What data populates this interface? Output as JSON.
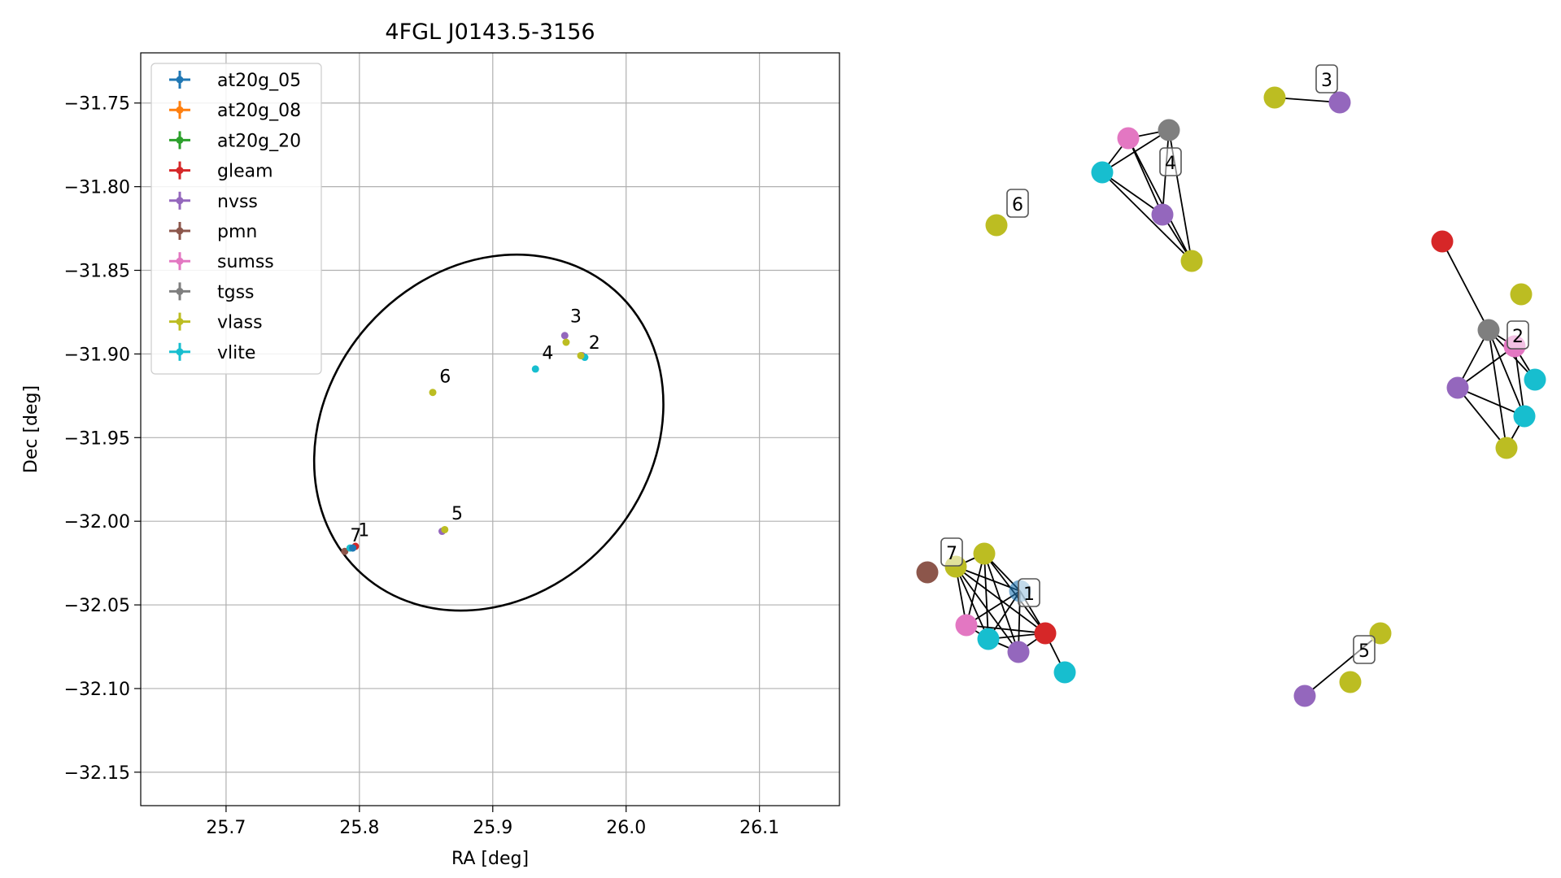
{
  "figure": {
    "title": "4FGL J0143.5-3156"
  },
  "colors": {
    "at20g_05": "#1f77b4",
    "at20g_08": "#ff7f0e",
    "at20g_20": "#2ca02c",
    "gleam": "#d62728",
    "nvss": "#9467bd",
    "pmn": "#8c564b",
    "sumss": "#e377c2",
    "tgss": "#7f7f7f",
    "vlass": "#bcbd22",
    "vlite": "#17becf",
    "grid": "#b0b0b0",
    "ellipse": "#000000"
  },
  "chart_data": [
    {
      "type": "scatter",
      "title": "4FGL J0143.5-3156",
      "xlabel": "RA [deg]",
      "ylabel": "Dec [deg]",
      "xlim": [
        25.636,
        26.16
      ],
      "ylim": [
        -32.17,
        -31.72
      ],
      "xticks": [
        25.7,
        25.8,
        25.9,
        26.0,
        26.1
      ],
      "xtick_labels": [
        "25.7",
        "25.8",
        "25.9",
        "26.0",
        "26.1"
      ],
      "yticks": [
        -31.75,
        -31.8,
        -31.85,
        -31.9,
        -31.95,
        -32.0,
        -32.05,
        -32.1,
        -32.15
      ],
      "ytick_labels": [
        "−31.75",
        "−31.80",
        "−31.85",
        "−31.90",
        "−31.95",
        "−32.00",
        "−32.05",
        "−32.10",
        "−32.15"
      ],
      "grid": true,
      "legend_position": "top-left",
      "legend": [
        "at20g_05",
        "at20g_08",
        "at20g_20",
        "gleam",
        "nvss",
        "pmn",
        "sumss",
        "tgss",
        "vlass",
        "vlite"
      ],
      "ellipse": {
        "center_ra": 25.897,
        "center_dec": -31.947,
        "semi_major_deg": 0.1425,
        "semi_minor_deg": 0.0965,
        "position_angle_deg": -48.5
      },
      "points": [
        {
          "catalog": "gleam",
          "ra": 25.797,
          "dec": -32.015
        },
        {
          "catalog": "pmn",
          "ra": 25.789,
          "dec": -32.018
        },
        {
          "catalog": "vlite",
          "ra": 25.793,
          "dec": -32.016
        },
        {
          "catalog": "at20g_05",
          "ra": 25.795,
          "dec": -32.016
        },
        {
          "catalog": "nvss",
          "ra": 25.862,
          "dec": -32.006
        },
        {
          "catalog": "vlass",
          "ra": 25.864,
          "dec": -32.005
        },
        {
          "catalog": "vlass",
          "ra": 25.855,
          "dec": -31.923
        },
        {
          "catalog": "nvss",
          "ra": 25.954,
          "dec": -31.889
        },
        {
          "catalog": "vlass",
          "ra": 25.955,
          "dec": -31.893
        },
        {
          "catalog": "vlite",
          "ra": 25.932,
          "dec": -31.909
        },
        {
          "catalog": "nvss",
          "ra": 25.967,
          "dec": -31.901
        },
        {
          "catalog": "vlite",
          "ra": 25.969,
          "dec": -31.902
        },
        {
          "catalog": "vlass",
          "ra": 25.966,
          "dec": -31.901
        }
      ],
      "cluster_labels": [
        {
          "text": "1",
          "ra": 25.799,
          "dec": -32.009
        },
        {
          "text": "7",
          "ra": 25.793,
          "dec": -32.012
        },
        {
          "text": "5",
          "ra": 25.869,
          "dec": -31.999
        },
        {
          "text": "6",
          "ra": 25.86,
          "dec": -31.917
        },
        {
          "text": "3",
          "ra": 25.958,
          "dec": -31.881
        },
        {
          "text": "4",
          "ra": 25.937,
          "dec": -31.903
        },
        {
          "text": "2",
          "ra": 25.972,
          "dec": -31.897
        }
      ]
    },
    {
      "type": "network",
      "clusters": [
        {
          "label": "1",
          "nodes": [
            {
              "id": "1a",
              "catalog": "pmn"
            },
            {
              "id": "1b",
              "catalog": "vlass"
            },
            {
              "id": "1c",
              "catalog": "vlass"
            },
            {
              "id": "1d",
              "catalog": "at20g_05"
            },
            {
              "id": "1e",
              "catalog": "sumss"
            },
            {
              "id": "1f",
              "catalog": "vlite"
            },
            {
              "id": "1g",
              "catalog": "nvss"
            },
            {
              "id": "1h",
              "catalog": "gleam"
            },
            {
              "id": "1i",
              "catalog": "vlite"
            }
          ],
          "edges": [
            [
              "1b",
              "1c"
            ],
            [
              "1b",
              "1d"
            ],
            [
              "1b",
              "1e"
            ],
            [
              "1b",
              "1f"
            ],
            [
              "1b",
              "1g"
            ],
            [
              "1b",
              "1h"
            ],
            [
              "1c",
              "1d"
            ],
            [
              "1c",
              "1e"
            ],
            [
              "1c",
              "1f"
            ],
            [
              "1c",
              "1g"
            ],
            [
              "1c",
              "1h"
            ],
            [
              "1d",
              "1e"
            ],
            [
              "1d",
              "1f"
            ],
            [
              "1d",
              "1g"
            ],
            [
              "1d",
              "1h"
            ],
            [
              "1e",
              "1f"
            ],
            [
              "1f",
              "1g"
            ],
            [
              "1g",
              "1h"
            ],
            [
              "1h",
              "1i"
            ],
            [
              "1e",
              "1h"
            ],
            [
              "1f",
              "1h"
            ]
          ]
        },
        {
          "label": "7",
          "nodes": [],
          "edges": []
        },
        {
          "label": "2",
          "nodes": [
            {
              "id": "2a",
              "catalog": "gleam"
            },
            {
              "id": "2b",
              "catalog": "vlass"
            },
            {
              "id": "2c",
              "catalog": "tgss"
            },
            {
              "id": "2d",
              "catalog": "sumss"
            },
            {
              "id": "2e",
              "catalog": "vlite"
            },
            {
              "id": "2f",
              "catalog": "nvss"
            },
            {
              "id": "2g",
              "catalog": "vlite"
            },
            {
              "id": "2h",
              "catalog": "vlass"
            }
          ],
          "edges": [
            [
              "2a",
              "2c"
            ],
            [
              "2c",
              "2d"
            ],
            [
              "2c",
              "2f"
            ],
            [
              "2c",
              "2g"
            ],
            [
              "2c",
              "2h"
            ],
            [
              "2c",
              "2e"
            ],
            [
              "2f",
              "2d"
            ],
            [
              "2f",
              "2g"
            ],
            [
              "2f",
              "2h"
            ],
            [
              "2d",
              "2g"
            ],
            [
              "2d",
              "2e"
            ],
            [
              "2g",
              "2h"
            ]
          ]
        },
        {
          "label": "3",
          "nodes": [
            {
              "id": "3a",
              "catalog": "vlass"
            },
            {
              "id": "3b",
              "catalog": "nvss"
            }
          ],
          "edges": [
            [
              "3a",
              "3b"
            ]
          ]
        },
        {
          "label": "4",
          "nodes": [
            {
              "id": "4a",
              "catalog": "sumss"
            },
            {
              "id": "4b",
              "catalog": "tgss"
            },
            {
              "id": "4c",
              "catalog": "vlite"
            },
            {
              "id": "4d",
              "catalog": "nvss"
            },
            {
              "id": "4e",
              "catalog": "vlass"
            }
          ],
          "edges": [
            [
              "4a",
              "4b"
            ],
            [
              "4a",
              "4c"
            ],
            [
              "4a",
              "4d"
            ],
            [
              "4a",
              "4e"
            ],
            [
              "4b",
              "4c"
            ],
            [
              "4b",
              "4d"
            ],
            [
              "4b",
              "4e"
            ],
            [
              "4c",
              "4d"
            ],
            [
              "4c",
              "4e"
            ],
            [
              "4d",
              "4e"
            ]
          ]
        },
        {
          "label": "5",
          "nodes": [
            {
              "id": "5a",
              "catalog": "vlass"
            },
            {
              "id": "5b",
              "catalog": "vlass"
            },
            {
              "id": "5c",
              "catalog": "nvss"
            }
          ],
          "edges": [
            [
              "5a",
              "5c"
            ]
          ]
        },
        {
          "label": "6",
          "nodes": [
            {
              "id": "6a",
              "catalog": "vlass"
            }
          ],
          "edges": []
        }
      ]
    }
  ]
}
